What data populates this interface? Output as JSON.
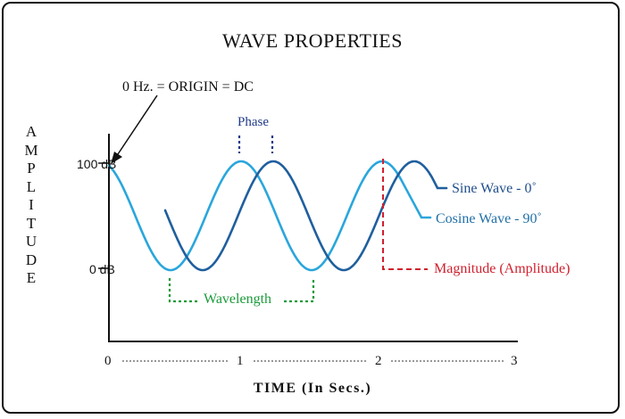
{
  "title": "WAVE PROPERTIES",
  "annotations": {
    "origin": "0 Hz. = ORIGIN = DC",
    "phase": "Phase",
    "wavelength": "Wavelength",
    "magnitude": "Magnitude (Amplitude)"
  },
  "y_axis": {
    "label_letters": [
      "A",
      "M",
      "P",
      "L",
      "I",
      "T",
      "U",
      "D",
      "E"
    ],
    "tick_high": "100 dB",
    "tick_low": "0 dB"
  },
  "x_axis": {
    "ticks": [
      "0",
      "1",
      "2",
      "3"
    ],
    "label": "TIME (In Secs.)"
  },
  "legend": {
    "sine": "Sine Wave - 0˚",
    "cosine": "Cosine Wave - 90˚"
  },
  "colors": {
    "sine": "#1f5f9e",
    "cosine": "#2aa6dc",
    "phase_marker": "#1f3a8a",
    "wavelength_marker": "#1a9a3a",
    "magnitude_marker": "#d0202e",
    "axis": "#111111"
  }
}
